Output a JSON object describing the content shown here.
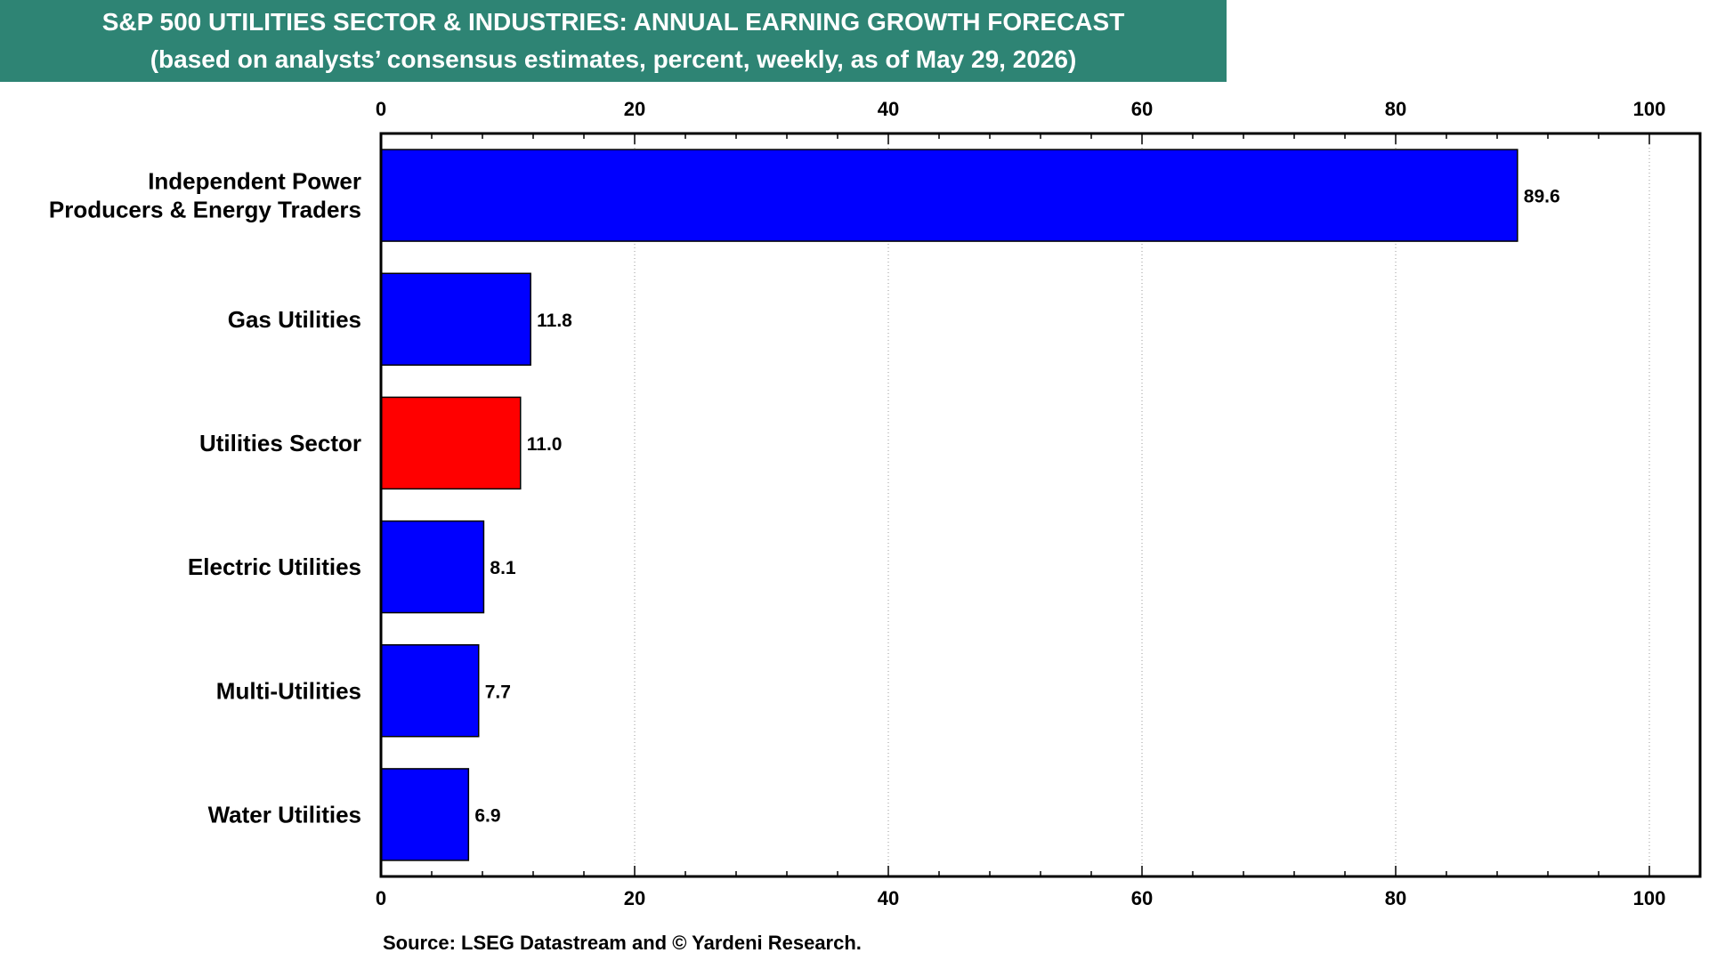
{
  "title": {
    "line1": "S&P 500 UTILITIES SECTOR & INDUSTRIES: ANNUAL EARNING GROWTH FORECAST",
    "line2": "(based on analysts’ consensus estimates, percent, weekly, as of May 29, 2026)"
  },
  "source": "Source: LSEG Datastream and © Yardeni Research.",
  "colors": {
    "banner": "#2e8474",
    "industry_bar": "#0000ff",
    "sector_bar": "#ff0000"
  },
  "chart_data": {
    "type": "bar",
    "orientation": "horizontal",
    "categories": [
      [
        "Independent Power",
        "Producers & Energy Traders"
      ],
      [
        "Gas Utilities"
      ],
      [
        "Utilities Sector"
      ],
      [
        "Electric Utilities"
      ],
      [
        "Multi-Utilities"
      ],
      [
        "Water Utilities"
      ]
    ],
    "values": [
      89.6,
      11.8,
      11.0,
      8.1,
      7.7,
      6.9
    ],
    "value_labels": [
      "89.6",
      "11.8",
      "11.0",
      "8.1",
      "7.7",
      "6.9"
    ],
    "highlight": [
      false,
      false,
      true,
      false,
      false,
      false
    ],
    "xlim": [
      0,
      104
    ],
    "xticks": [
      0,
      20,
      40,
      60,
      80,
      100
    ],
    "xtick_labels": [
      "0",
      "20",
      "40",
      "60",
      "80",
      "100"
    ],
    "minor_tick_step": 4,
    "axis_position": "top and bottom",
    "grid": true
  }
}
